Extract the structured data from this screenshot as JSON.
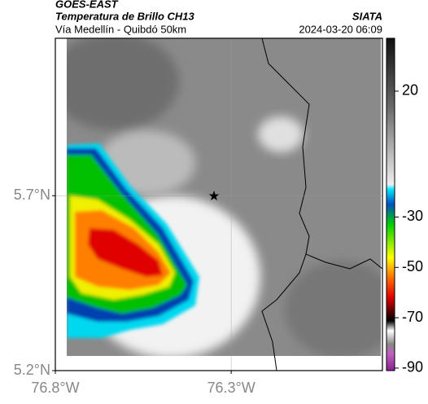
{
  "header": {
    "title": "GOES-EAST",
    "subtitle": "Temperatura de Brillo CH13",
    "region": "Vía Medellín - Quibdó 50km",
    "source": "SIATA",
    "timestamp": "2024-03-20 06:09"
  },
  "map": {
    "xlim": [
      -76.8,
      -75.87
    ],
    "ylim": [
      5.2,
      6.15
    ],
    "xticks": [
      {
        "value": -76.8,
        "label": "76.8°W"
      },
      {
        "value": -76.3,
        "label": "76.3°W"
      }
    ],
    "yticks": [
      {
        "value": 5.2,
        "label": "5.2°N"
      },
      {
        "value": 5.7,
        "label": "5.7°N"
      }
    ],
    "grid": true
  },
  "colorbar": {
    "lim": [
      41,
      -91
    ],
    "ticks": [
      20,
      -30,
      -50,
      -70,
      -90
    ]
  }
}
